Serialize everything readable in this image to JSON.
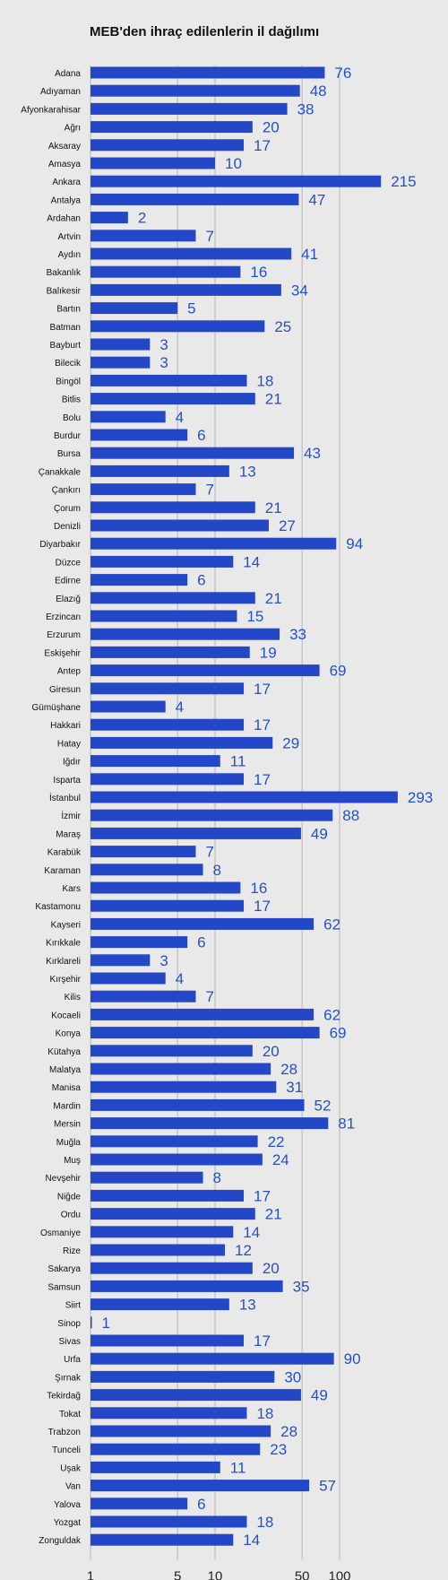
{
  "chart_data": {
    "type": "bar",
    "orientation": "horizontal",
    "title": "MEB'den ihraç edilenlerin il dağılımı",
    "xscale": "log",
    "xlim": [
      1,
      300
    ],
    "xticks": [
      1,
      5,
      10,
      50,
      100
    ],
    "grid": true,
    "bar_color": "#2347c6",
    "label_color": "#2550c8",
    "background_color": "#e9e9e9",
    "categories": [
      "Adana",
      "Adıyaman",
      "Afyonkarahisar",
      "Ağrı",
      "Aksaray",
      "Amasya",
      "Ankara",
      "Antalya",
      "Ardahan",
      "Artvin",
      "Aydın",
      "Bakanlık",
      "Balıkesir",
      "Bartın",
      "Batman",
      "Bayburt",
      "Bilecik",
      "Bingöl",
      "Bitlis",
      "Bolu",
      "Burdur",
      "Bursa",
      "Çanakkale",
      "Çankırı",
      "Çorum",
      "Denizli",
      "Diyarbakır",
      "Düzce",
      "Edirne",
      "Elazığ",
      "Erzincan",
      "Erzurum",
      "Eskişehir",
      "Antep",
      "Giresun",
      "Gümüşhane",
      "Hakkari",
      "Hatay",
      "Iğdır",
      "Isparta",
      "İstanbul",
      "İzmir",
      "Maraş",
      "Karabük",
      "Karaman",
      "Kars",
      "Kastamonu",
      "Kayseri",
      "Kırıkkale",
      "Kırklareli",
      "Kırşehir",
      "Kilis",
      "Kocaeli",
      "Konya",
      "Kütahya",
      "Malatya",
      "Manisa",
      "Mardin",
      "Mersin",
      "Muğla",
      "Muş",
      "Nevşehir",
      "Niğde",
      "Ordu",
      "Osmaniye",
      "Rize",
      "Sakarya",
      "Samsun",
      "Siirt",
      "Sinop",
      "Sivas",
      "Urfa",
      "Şırnak",
      "Tekirdağ",
      "Tokat",
      "Trabzon",
      "Tunceli",
      "Uşak",
      "Van",
      "Yalova",
      "Yozgat",
      "Zonguldak"
    ],
    "values": [
      76,
      48,
      38,
      20,
      17,
      10,
      215,
      47,
      2,
      7,
      41,
      16,
      34,
      5,
      25,
      3,
      3,
      18,
      21,
      4,
      6,
      43,
      13,
      7,
      21,
      27,
      94,
      14,
      6,
      21,
      15,
      33,
      19,
      69,
      17,
      4,
      17,
      29,
      11,
      17,
      293,
      88,
      49,
      7,
      8,
      16,
      17,
      62,
      6,
      3,
      4,
      7,
      62,
      69,
      20,
      28,
      31,
      52,
      81,
      22,
      24,
      8,
      17,
      21,
      14,
      12,
      20,
      35,
      13,
      1,
      17,
      90,
      30,
      49,
      18,
      28,
      23,
      11,
      57,
      6,
      18,
      14
    ]
  }
}
